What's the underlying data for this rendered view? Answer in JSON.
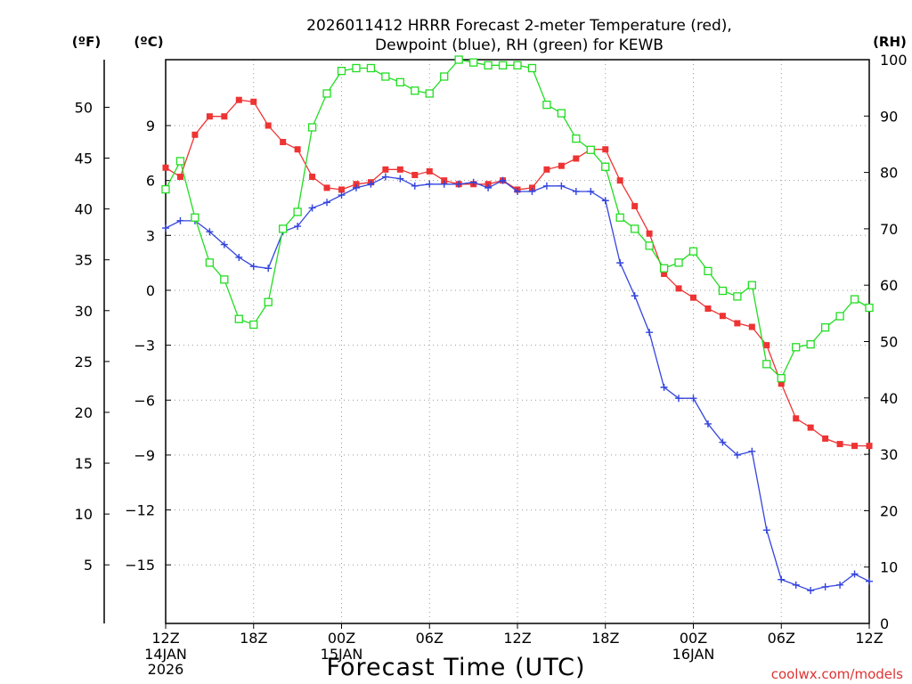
{
  "chart_data": {
    "type": "line",
    "title": "2026011412 HRRR Forecast 2-meter Temperature (red),",
    "subtitle": "Dewpoint (blue), RH (green) for KEWB",
    "xlabel": "Forecast Time (UTC)",
    "watermark": "coolwx.com/models",
    "axis_labels": {
      "fahrenheit": "(ºF)",
      "celsius": "(ºC)",
      "rh": "(RH)"
    },
    "xlim": [
      0,
      48
    ],
    "x_ticks": [
      {
        "x": 0,
        "label": "12Z",
        "sub": [
          "14JAN",
          "2026"
        ]
      },
      {
        "x": 6,
        "label": "18Z",
        "sub": []
      },
      {
        "x": 12,
        "label": "00Z",
        "sub": [
          "15JAN"
        ]
      },
      {
        "x": 18,
        "label": "06Z",
        "sub": []
      },
      {
        "x": 24,
        "label": "12Z",
        "sub": []
      },
      {
        "x": 30,
        "label": "18Z",
        "sub": []
      },
      {
        "x": 36,
        "label": "00Z",
        "sub": [
          "16JAN"
        ]
      },
      {
        "x": 42,
        "label": "06Z",
        "sub": []
      },
      {
        "x": 48,
        "label": "12Z",
        "sub": []
      }
    ],
    "ylim_celsius": [
      -18.2,
      12.6
    ],
    "celsius_ticks": [
      9,
      6,
      3,
      0,
      -3,
      -6,
      -9,
      -12,
      -15
    ],
    "fahrenheit_ticks": [
      50,
      45,
      40,
      35,
      30,
      25,
      20,
      15,
      10,
      5
    ],
    "ylim_rh": [
      0,
      100
    ],
    "rh_ticks": [
      100,
      90,
      80,
      70,
      60,
      50,
      40,
      30,
      20,
      10,
      0
    ],
    "series": [
      {
        "name": "Temperature",
        "color": "#ee3333",
        "marker": "filled-square",
        "axis": "celsius",
        "values": [
          6.7,
          6.2,
          8.5,
          9.5,
          9.5,
          10.4,
          10.3,
          9.0,
          8.1,
          7.7,
          6.2,
          5.6,
          5.5,
          5.8,
          5.9,
          6.6,
          6.6,
          6.3,
          6.5,
          6.0,
          5.8,
          5.8,
          5.8,
          6.0,
          5.5,
          5.6,
          6.6,
          6.8,
          7.2,
          7.7,
          7.7,
          6.0,
          4.6,
          3.1,
          0.9,
          0.1,
          -0.4,
          -1.0,
          -1.4,
          -1.8,
          -2.0,
          -3.0,
          -5.1,
          -7.0,
          -7.5,
          -8.1,
          -8.4,
          -8.5,
          -8.5
        ]
      },
      {
        "name": "Dewpoint",
        "color": "#3344dd",
        "marker": "plus",
        "axis": "celsius",
        "values": [
          3.4,
          3.8,
          3.8,
          3.2,
          2.5,
          1.8,
          1.3,
          1.2,
          3.2,
          3.5,
          4.5,
          4.8,
          5.2,
          5.6,
          5.8,
          6.2,
          6.1,
          5.7,
          5.8,
          5.8,
          5.8,
          5.9,
          5.6,
          6.0,
          5.4,
          5.4,
          5.7,
          5.7,
          5.4,
          5.4,
          4.9,
          1.5,
          -0.3,
          -2.3,
          -5.3,
          -5.9,
          -5.9,
          -7.3,
          -8.3,
          -9.0,
          -8.8,
          -13.1,
          -15.8,
          -16.1,
          -16.4,
          -16.2,
          -16.1,
          -15.5,
          -15.9
        ]
      },
      {
        "name": "RH",
        "color": "#22dd22",
        "marker": "open-square",
        "axis": "rh",
        "values": [
          77,
          82,
          72,
          64,
          61,
          54,
          53,
          57,
          70,
          73,
          88,
          94,
          98,
          98.5,
          98.5,
          97,
          96,
          94.5,
          94,
          97,
          100,
          99.5,
          99,
          99,
          99,
          98.5,
          92,
          90.5,
          86,
          84,
          81,
          72,
          70,
          67,
          63,
          64,
          66,
          62.5,
          59,
          58,
          60,
          46,
          43.5,
          49,
          49.5,
          52.5,
          54.5,
          57.5,
          56
        ]
      }
    ]
  }
}
